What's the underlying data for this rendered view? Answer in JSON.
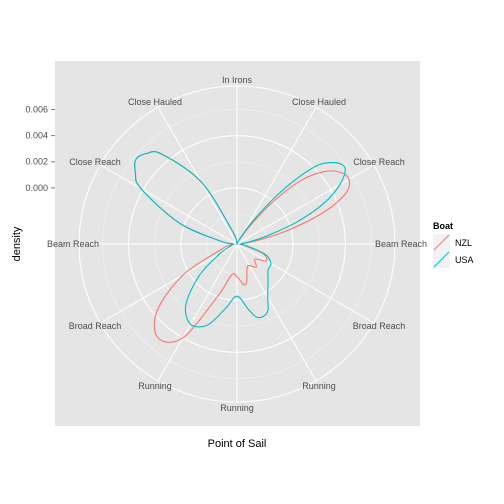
{
  "chart_data": {
    "type": "line",
    "coord": "polar",
    "title": "",
    "xlabel": "Point of Sail",
    "ylabel": "density",
    "ylim": [
      -0.0043,
      0.0078
    ],
    "yticks": [
      0.0,
      0.002,
      0.004,
      0.006
    ],
    "ytick_labels": [
      "0.000",
      "0.002",
      "0.004",
      "0.006"
    ],
    "radial_grid": [
      -0.004,
      0.0,
      0.004
    ],
    "angle_range_deg": [
      0,
      360
    ],
    "angle_labels": [
      {
        "angle": 0,
        "label": "In Irons"
      },
      {
        "angle": 30,
        "label": "Close Hauled"
      },
      {
        "angle": 60,
        "label": "Close Reach"
      },
      {
        "angle": 90,
        "label": "Beam Reach"
      },
      {
        "angle": 120,
        "label": "Broad Reach"
      },
      {
        "angle": 150,
        "label": "Running"
      },
      {
        "angle": 180,
        "label": "Running"
      },
      {
        "angle": 210,
        "label": "Running"
      },
      {
        "angle": 240,
        "label": "Broad Reach"
      },
      {
        "angle": 270,
        "label": "Beam Reach"
      },
      {
        "angle": 300,
        "label": "Close Reach"
      },
      {
        "angle": 330,
        "label": "Close Hauled"
      }
    ],
    "legend": {
      "title": "Boat",
      "position": "right"
    },
    "series": [
      {
        "name": "NZL",
        "color": "#F8766D",
        "x": [
          0,
          10,
          20,
          30,
          35,
          40,
          45,
          50,
          55,
          60,
          65,
          70,
          75,
          80,
          90,
          100,
          110,
          120,
          130,
          140,
          150,
          155,
          160,
          165,
          170,
          180,
          190,
          200,
          210,
          220,
          230,
          240,
          250,
          260,
          270,
          280,
          290,
          300,
          305,
          310,
          315,
          320,
          330,
          340,
          350,
          360
        ],
        "y": [
          -0.0043,
          -0.0043,
          -0.0042,
          -0.004,
          -0.0028,
          -0.0003,
          0.0025,
          0.0043,
          0.0053,
          0.0056,
          0.0049,
          0.0027,
          -0.0003,
          -0.0027,
          -0.004,
          -0.0038,
          -0.0022,
          -0.0017,
          -0.0025,
          -0.002,
          -0.0024,
          -0.0024,
          -0.0021,
          -0.0014,
          -0.0011,
          -0.0018,
          -0.0019,
          -0.0001,
          0.004,
          0.0051,
          0.0037,
          0.0005,
          -0.0029,
          -0.0037,
          -0.004,
          -0.003,
          0.0004,
          0.0042,
          0.0052,
          0.0058,
          0.0055,
          0.0047,
          0.0012,
          -0.0032,
          -0.0042,
          -0.0043
        ]
      },
      {
        "name": "USA",
        "color": "#00BFC4",
        "x": [
          0,
          10,
          20,
          30,
          35,
          40,
          45,
          50,
          55,
          60,
          65,
          70,
          75,
          80,
          90,
          100,
          110,
          120,
          130,
          140,
          150,
          155,
          160,
          165,
          170,
          180,
          190,
          200,
          210,
          220,
          230,
          240,
          250,
          260,
          270,
          280,
          290,
          300,
          305,
          310,
          315,
          320,
          330,
          340,
          350,
          360
        ],
        "y": [
          -0.0043,
          -0.0043,
          -0.0042,
          -0.0036,
          -0.002,
          0.0009,
          0.004,
          0.0054,
          0.0058,
          0.0048,
          0.003,
          0.0005,
          -0.002,
          -0.0033,
          -0.004,
          -0.0036,
          -0.002,
          -0.0013,
          -0.0012,
          -0.0006,
          0.0004,
          0.0013,
          0.0016,
          0.0015,
          0.0008,
          -0.0003,
          0.0007,
          0.0023,
          0.0028,
          0.0018,
          -0.0005,
          -0.0027,
          -0.0037,
          -0.0039,
          -0.004,
          -0.003,
          0.0004,
          0.0042,
          0.0052,
          0.0058,
          0.0055,
          0.0047,
          0.0012,
          -0.0032,
          -0.0042,
          -0.0043
        ]
      }
    ]
  }
}
